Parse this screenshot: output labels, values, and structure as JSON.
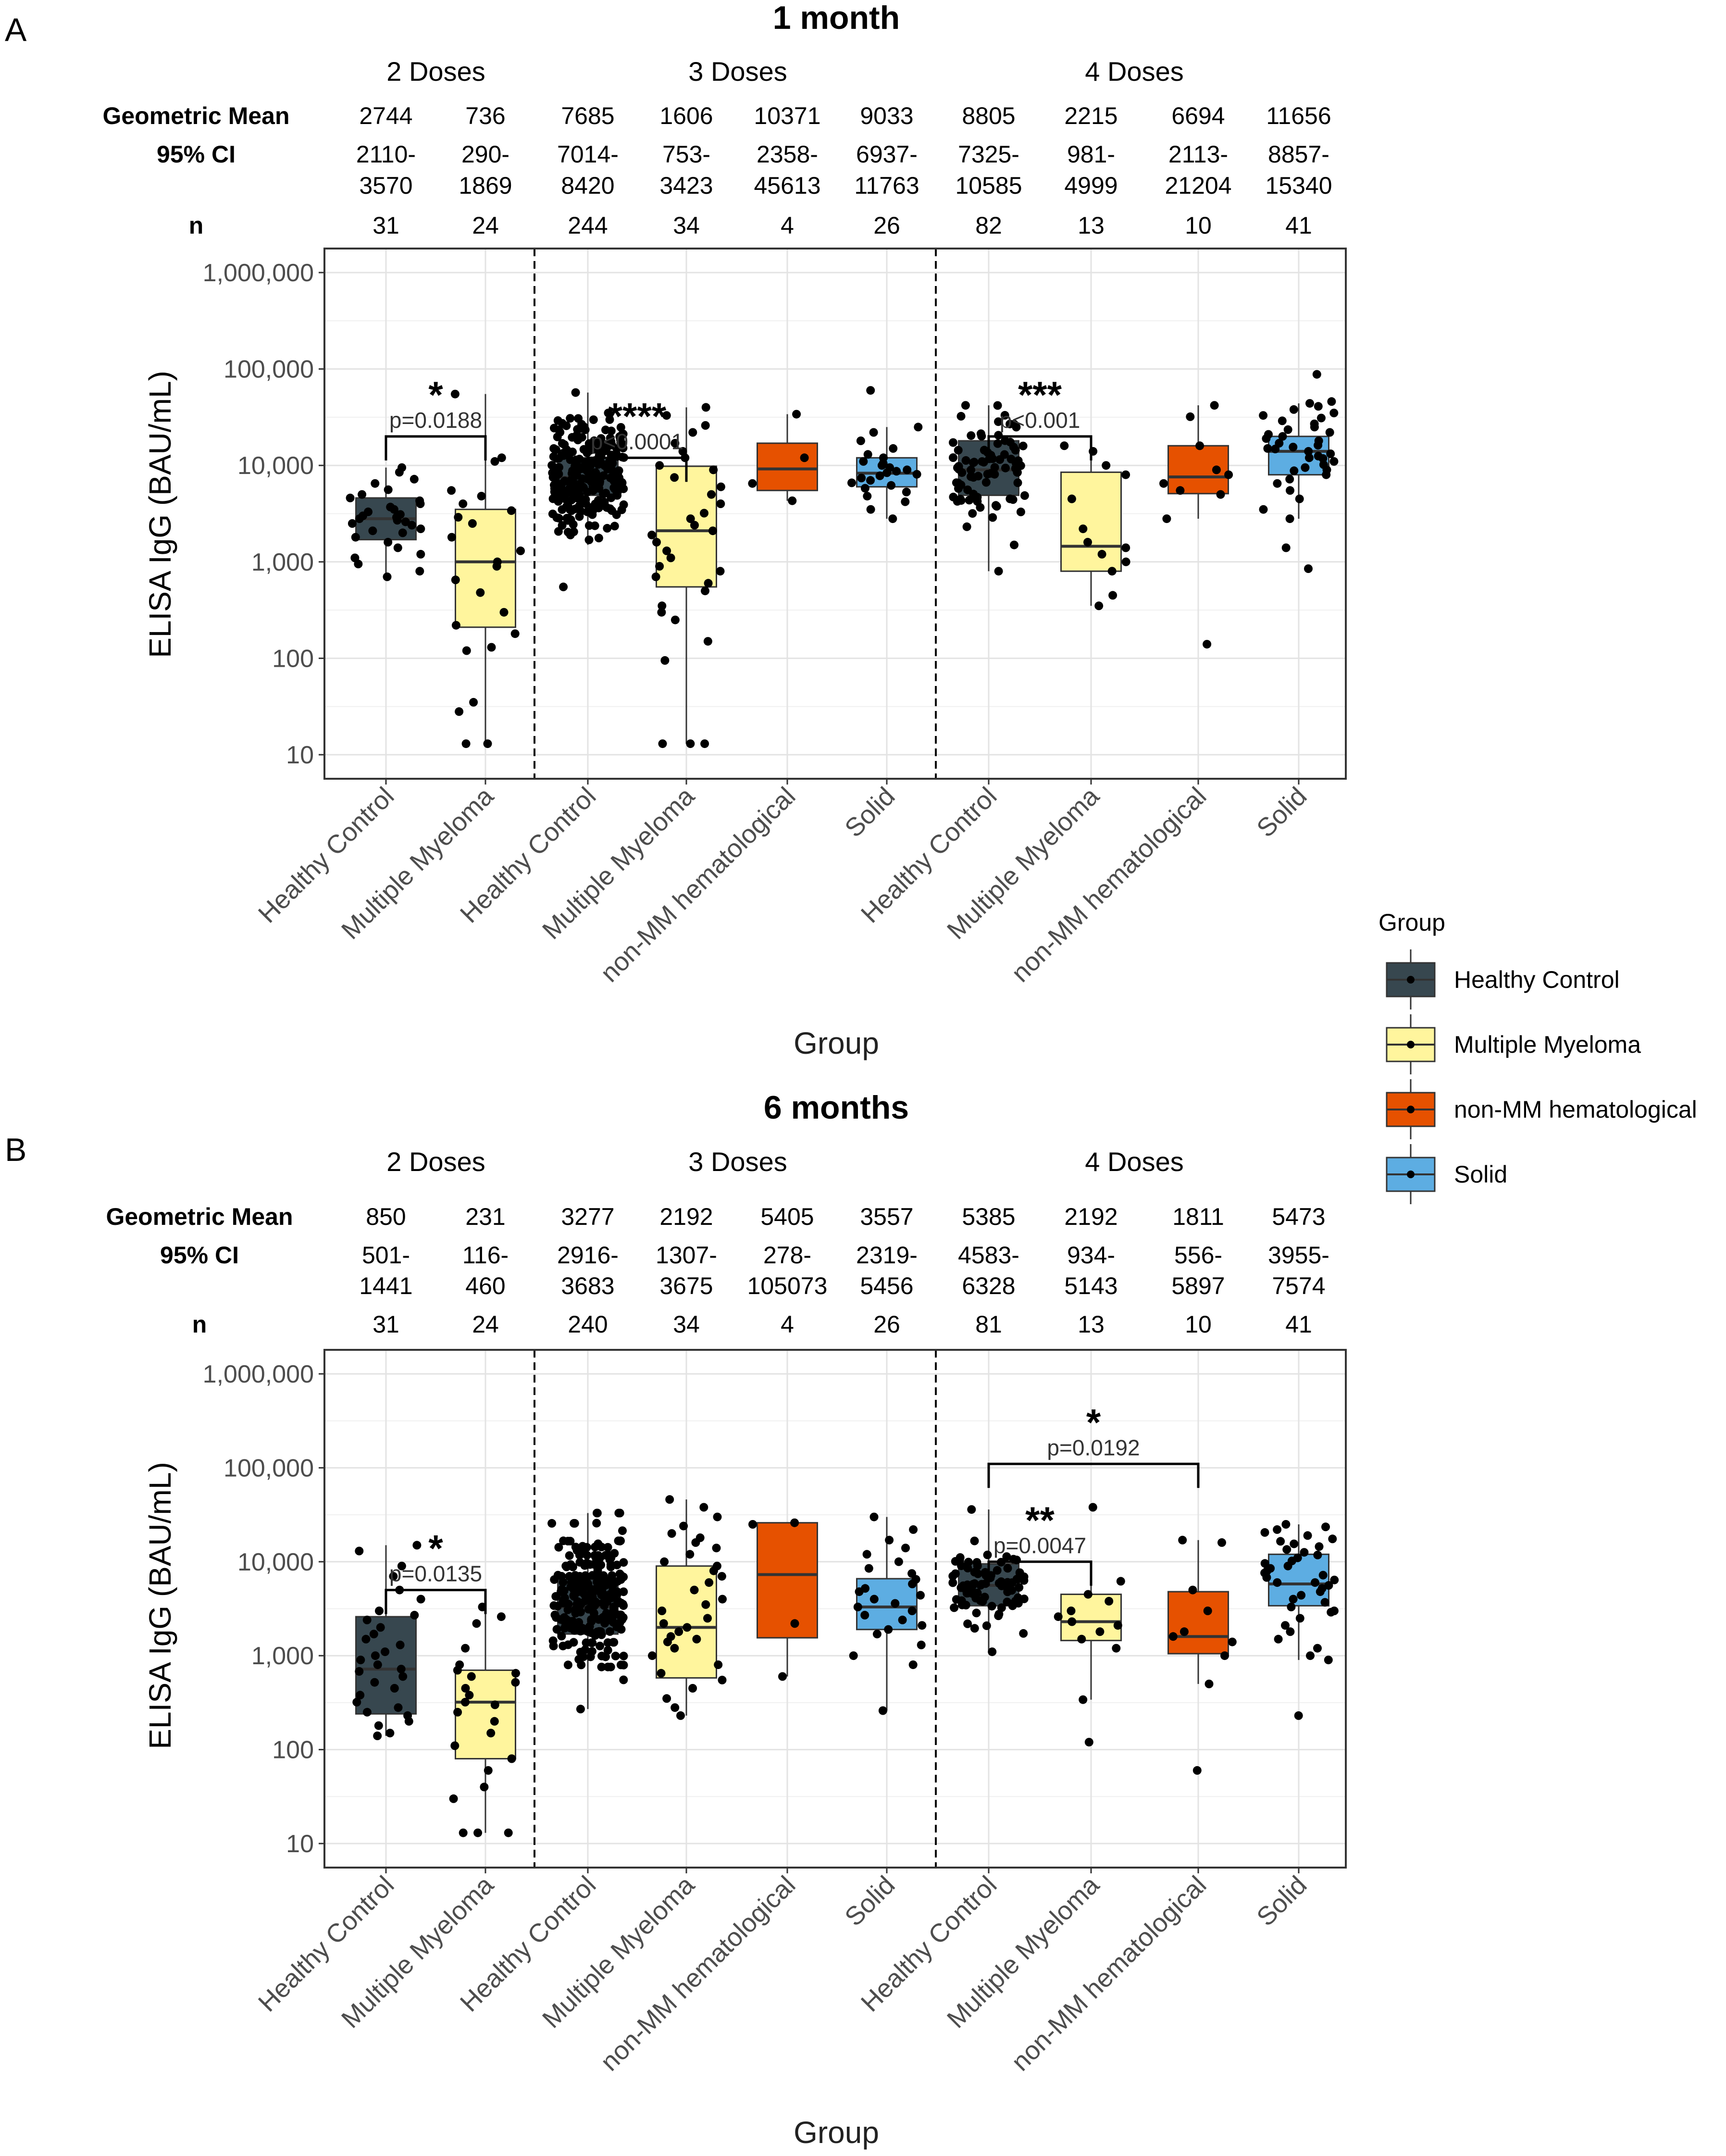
{
  "figure": {
    "legend": {
      "title": "Group",
      "entries": [
        {
          "name": "Healthy Control",
          "color": "#37474f"
        },
        {
          "name": "Multiple Myeloma",
          "color": "#fff59d"
        },
        {
          "name": "non-MM hematological",
          "color": "#e65100"
        },
        {
          "name": "Solid",
          "color": "#5dade2"
        }
      ]
    }
  },
  "chart_data": [
    {
      "type": "boxplot",
      "panel_letter": "A",
      "title": "1 month",
      "xlabel": "Group",
      "ylabel": "ELISA IgG (BAU/mL)",
      "yscale": "log10",
      "ylim": [
        10,
        1000000
      ],
      "ytick_values": [
        10,
        100,
        1000,
        10000,
        100000,
        1000000
      ],
      "yticks": [
        "10",
        "100",
        "1,000",
        "10,000",
        "100,000",
        "1,000,000"
      ],
      "row_labels": {
        "gm": "Geometric Mean",
        "ci": "95% CI",
        "n": "n"
      },
      "groups": [
        {
          "label": "2 Doses",
          "columns": [
            0,
            1
          ]
        },
        {
          "label": "3 Doses",
          "columns": [
            2,
            3,
            4,
            5
          ]
        },
        {
          "label": "4 Doses",
          "columns": [
            6,
            7,
            8,
            9
          ]
        }
      ],
      "columns": [
        {
          "category": "Healthy Control",
          "gm": "2744",
          "ci_low": "2110-",
          "ci_high": "3570",
          "n": "31",
          "q1": 1700,
          "median": 2800,
          "q3": 4600,
          "wlow": 700,
          "whigh": 9500
        },
        {
          "category": "Multiple Myeloma",
          "gm": "736",
          "ci_low": "290-",
          "ci_high": "1869",
          "n": "24",
          "q1": 210,
          "median": 1000,
          "q3": 3500,
          "wlow": 13,
          "whigh": 55000
        },
        {
          "category": "Healthy Control",
          "gm": "7685",
          "ci_low": "7014-",
          "ci_high": "8420",
          "n": "244",
          "q1": 4900,
          "median": 7500,
          "q3": 12000,
          "wlow": 1500,
          "whigh": 57000
        },
        {
          "category": "Multiple Myeloma",
          "gm": "1606",
          "ci_low": "753-",
          "ci_high": "3423",
          "n": "34",
          "q1": 550,
          "median": 2100,
          "q3": 9800,
          "wlow": 13,
          "whigh": 40000
        },
        {
          "category": "non-MM hematological",
          "gm": "10371",
          "ci_low": "2358-",
          "ci_high": "45613",
          "n": "4",
          "q1": 5500,
          "median": 9200,
          "q3": 17000,
          "wlow": 4300,
          "whigh": 34000
        },
        {
          "category": "Solid",
          "gm": "9033",
          "ci_low": "6937-",
          "ci_high": "11763",
          "n": "26",
          "q1": 6000,
          "median": 8300,
          "q3": 12000,
          "wlow": 2800,
          "whigh": 25000
        },
        {
          "category": "Healthy Control",
          "gm": "8805",
          "ci_low": "7325-",
          "ci_high": "10585",
          "n": "82",
          "q1": 4900,
          "median": 9000,
          "q3": 18000,
          "wlow": 800,
          "whigh": 42000
        },
        {
          "category": "Multiple Myeloma",
          "gm": "2215",
          "ci_low": "981-",
          "ci_high": "4999",
          "n": "13",
          "q1": 800,
          "median": 1450,
          "q3": 8500,
          "wlow": 350,
          "whigh": 16000
        },
        {
          "category": "non-MM hematological",
          "gm": "6694",
          "ci_low": "2113-",
          "ci_high": "21204",
          "n": "10",
          "q1": 5100,
          "median": 7600,
          "q3": 16000,
          "wlow": 2800,
          "whigh": 42000
        },
        {
          "category": "Solid",
          "gm": "11656",
          "ci_low": "8857-",
          "ci_high": "15340",
          "n": "41",
          "q1": 8000,
          "median": 14000,
          "q3": 20000,
          "wlow": 2800,
          "whigh": 44000
        }
      ],
      "points": [
        [
          700,
          800,
          950,
          1100,
          1200,
          1400,
          1600,
          1800,
          2000,
          2100,
          2200,
          2400,
          2500,
          2600,
          2700,
          2800,
          2900,
          3000,
          3100,
          3300,
          3500,
          3700,
          4000,
          4300,
          4600,
          5000,
          5600,
          6500,
          7200,
          8500,
          9500
        ],
        [
          13,
          13,
          28,
          35,
          120,
          130,
          180,
          220,
          300,
          480,
          650,
          900,
          1000,
          1300,
          1800,
          2500,
          2900,
          3400,
          4000,
          4800,
          5500,
          11000,
          12000,
          55000
        ],
        [],
        [
          13,
          13,
          13,
          95,
          150,
          250,
          300,
          350,
          500,
          600,
          700,
          800,
          900,
          1100,
          1300,
          1600,
          1900,
          2100,
          2400,
          2800,
          3200,
          4000,
          5000,
          6000,
          7500,
          9000,
          10000,
          12000,
          14000,
          17000,
          22000,
          26000,
          33000,
          40000
        ],
        [
          4300,
          6500,
          12000,
          34000
        ],
        [
          2800,
          3500,
          4200,
          4800,
          5300,
          5800,
          6200,
          6600,
          7000,
          7400,
          7800,
          8100,
          8400,
          8700,
          9000,
          9500,
          10000,
          10500,
          11000,
          12000,
          13000,
          15000,
          18000,
          22000,
          25000,
          60000
        ],
        [],
        [
          350,
          450,
          800,
          1000,
          1200,
          1400,
          1600,
          2200,
          4500,
          8000,
          10000,
          14000,
          16000
        ],
        [
          140,
          2800,
          5000,
          5500,
          6500,
          8000,
          9000,
          16000,
          32000,
          42000
        ],
        [
          850,
          1400,
          2800,
          3500,
          4500,
          5500,
          6500,
          7200,
          8000,
          8800,
          9500,
          10200,
          11000,
          11800,
          12500,
          13200,
          14000,
          14800,
          15500,
          16200,
          17000,
          18000,
          19000,
          20000,
          21000,
          22000,
          23500,
          25000,
          27000,
          29000,
          31000,
          33000,
          35000,
          38000,
          41000,
          44000,
          46000,
          9000,
          12000,
          15000,
          88000
        ]
      ],
      "dense_points": {
        "2": {
          "count": 244,
          "min": 550,
          "max": 57000,
          "center": 7500,
          "spread": 0.22
        },
        "6": {
          "count": 82,
          "min": 800,
          "max": 42000,
          "center": 9000,
          "spread": 0.28
        }
      },
      "comparisons": [
        {
          "from": 0,
          "to": 1,
          "level": 20000,
          "p_label": "p=0.0188",
          "stars": "*"
        },
        {
          "from": 2,
          "to": 3,
          "level": 12000,
          "p_label": "p<0.0001",
          "stars": "****"
        },
        {
          "from": 6,
          "to": 7,
          "level": 20000,
          "p_label": "p<0.001",
          "stars": "***"
        }
      ]
    },
    {
      "type": "boxplot",
      "panel_letter": "B",
      "title": "6 months",
      "xlabel": "Group",
      "ylabel": "ELISA IgG (BAU/mL)",
      "yscale": "log10",
      "ylim": [
        10,
        1000000
      ],
      "ytick_values": [
        10,
        100,
        1000,
        10000,
        100000,
        1000000
      ],
      "yticks": [
        "10",
        "100",
        "1,000",
        "10,000",
        "100,000",
        "1,000,000"
      ],
      "row_labels": {
        "gm": "Geometric Mean",
        "ci": "95% CI",
        "n": "n"
      },
      "groups": [
        {
          "label": "2 Doses",
          "columns": [
            0,
            1
          ]
        },
        {
          "label": "3 Doses",
          "columns": [
            2,
            3,
            4,
            5
          ]
        },
        {
          "label": "4 Doses",
          "columns": [
            6,
            7,
            8,
            9
          ]
        }
      ],
      "columns": [
        {
          "category": "Healthy Control",
          "gm": "850",
          "ci_low": "501-",
          "ci_high": "1441",
          "n": "31",
          "q1": 240,
          "median": 720,
          "q3": 2600,
          "wlow": 140,
          "whigh": 15000
        },
        {
          "category": "Multiple Myeloma",
          "gm": "231",
          "ci_low": "116-",
          "ci_high": "460",
          "n": "24",
          "q1": 80,
          "median": 320,
          "q3": 700,
          "wlow": 13,
          "whigh": 3300
        },
        {
          "category": "Healthy Control",
          "gm": "3277",
          "ci_low": "2916-",
          "ci_high": "3683",
          "n": "240",
          "q1": 1700,
          "median": 3300,
          "q3": 6500,
          "wlow": 270,
          "whigh": 33000
        },
        {
          "category": "Multiple Myeloma",
          "gm": "2192",
          "ci_low": "1307-",
          "ci_high": "3675",
          "n": "34",
          "q1": 580,
          "median": 2000,
          "q3": 9000,
          "wlow": 230,
          "whigh": 46000
        },
        {
          "category": "non-MM hematological",
          "gm": "5405",
          "ci_low": "278-",
          "ci_high": "105073",
          "n": "4",
          "q1": 1550,
          "median": 7300,
          "q3": 26000,
          "wlow": 600,
          "whigh": 26000
        },
        {
          "category": "Solid",
          "gm": "3557",
          "ci_low": "2319-",
          "ci_high": "5456",
          "n": "26",
          "q1": 1900,
          "median": 3300,
          "q3": 6600,
          "wlow": 260,
          "whigh": 30000
        },
        {
          "category": "Healthy Control",
          "gm": "5385",
          "ci_low": "4583-",
          "ci_high": "6328",
          "n": "81",
          "q1": 3400,
          "median": 5600,
          "q3": 9500,
          "wlow": 1100,
          "whigh": 36000
        },
        {
          "category": "Multiple Myeloma",
          "gm": "2192",
          "ci_low": "934-",
          "ci_high": "5143",
          "n": "13",
          "q1": 1450,
          "median": 2300,
          "q3": 4500,
          "wlow": 340,
          "whigh": 6200
        },
        {
          "category": "non-MM hematological",
          "gm": "1811",
          "ci_low": "556-",
          "ci_high": "5897",
          "n": "10",
          "q1": 1050,
          "median": 1600,
          "q3": 4800,
          "wlow": 500,
          "whigh": 17000
        },
        {
          "category": "Solid",
          "gm": "5473",
          "ci_low": "3955-",
          "ci_high": "7574",
          "n": "41",
          "q1": 3400,
          "median": 5800,
          "q3": 12000,
          "wlow": 900,
          "whigh": 25000
        }
      ],
      "points": [
        [
          140,
          150,
          180,
          200,
          230,
          250,
          280,
          320,
          380,
          450,
          520,
          600,
          680,
          720,
          800,
          900,
          1000,
          1100,
          1300,
          1500,
          1700,
          2000,
          2400,
          2700,
          3000,
          4000,
          5000,
          7000,
          9000,
          13000,
          15000
        ],
        [
          13,
          13,
          13,
          30,
          40,
          60,
          80,
          110,
          150,
          200,
          250,
          300,
          320,
          380,
          450,
          520,
          600,
          650,
          700,
          800,
          1200,
          2200,
          2600,
          3300
        ],
        [],
        [
          230,
          280,
          350,
          450,
          550,
          650,
          800,
          1000,
          1200,
          1400,
          1600,
          1800,
          2000,
          2200,
          2500,
          3000,
          3500,
          4000,
          5000,
          6000,
          7000,
          8000,
          9000,
          10000,
          12000,
          14000,
          16000,
          18000,
          20000,
          24000,
          30000,
          38000,
          46000,
          1500
        ],
        [
          600,
          2200,
          25000,
          26000
        ],
        [
          260,
          800,
          1000,
          1300,
          1700,
          1900,
          2100,
          2400,
          2700,
          3000,
          3300,
          3600,
          4000,
          4400,
          4800,
          5200,
          5800,
          6500,
          7500,
          8500,
          10000,
          12000,
          14000,
          17000,
          22000,
          30000
        ],
        [],
        [
          120,
          340,
          1200,
          1500,
          1800,
          2100,
          2300,
          2600,
          3000,
          3800,
          4500,
          6200,
          38000
        ],
        [
          60,
          500,
          1000,
          1400,
          1600,
          1800,
          3000,
          5000,
          16000,
          17000
        ],
        [
          230,
          900,
          1000,
          1200,
          1500,
          1800,
          2100,
          2500,
          2900,
          3300,
          3700,
          4000,
          4400,
          4800,
          5200,
          5600,
          6000,
          6400,
          6800,
          7200,
          7600,
          8000,
          8500,
          9000,
          9600,
          10200,
          11000,
          11800,
          12600,
          13500,
          14500,
          15500,
          16500,
          17500,
          19000,
          20500,
          22000,
          23500,
          25000,
          3000,
          6000
        ]
      ],
      "dense_points": {
        "2": {
          "count": 240,
          "min": 270,
          "max": 33000,
          "center": 3300,
          "spread": 0.28
        },
        "6": {
          "count": 81,
          "min": 1100,
          "max": 36000,
          "center": 5600,
          "spread": 0.22
        }
      },
      "comparisons": [
        {
          "from": 0,
          "to": 1,
          "level": 5000,
          "p_label": "p=0.0135",
          "stars": "*"
        },
        {
          "from": 6,
          "to": 7,
          "level": 10000,
          "p_label": "p=0.0047",
          "stars": "**"
        },
        {
          "from": 6,
          "to": 8,
          "level": 110000,
          "p_label": "p=0.0192",
          "stars": "*"
        }
      ]
    }
  ]
}
